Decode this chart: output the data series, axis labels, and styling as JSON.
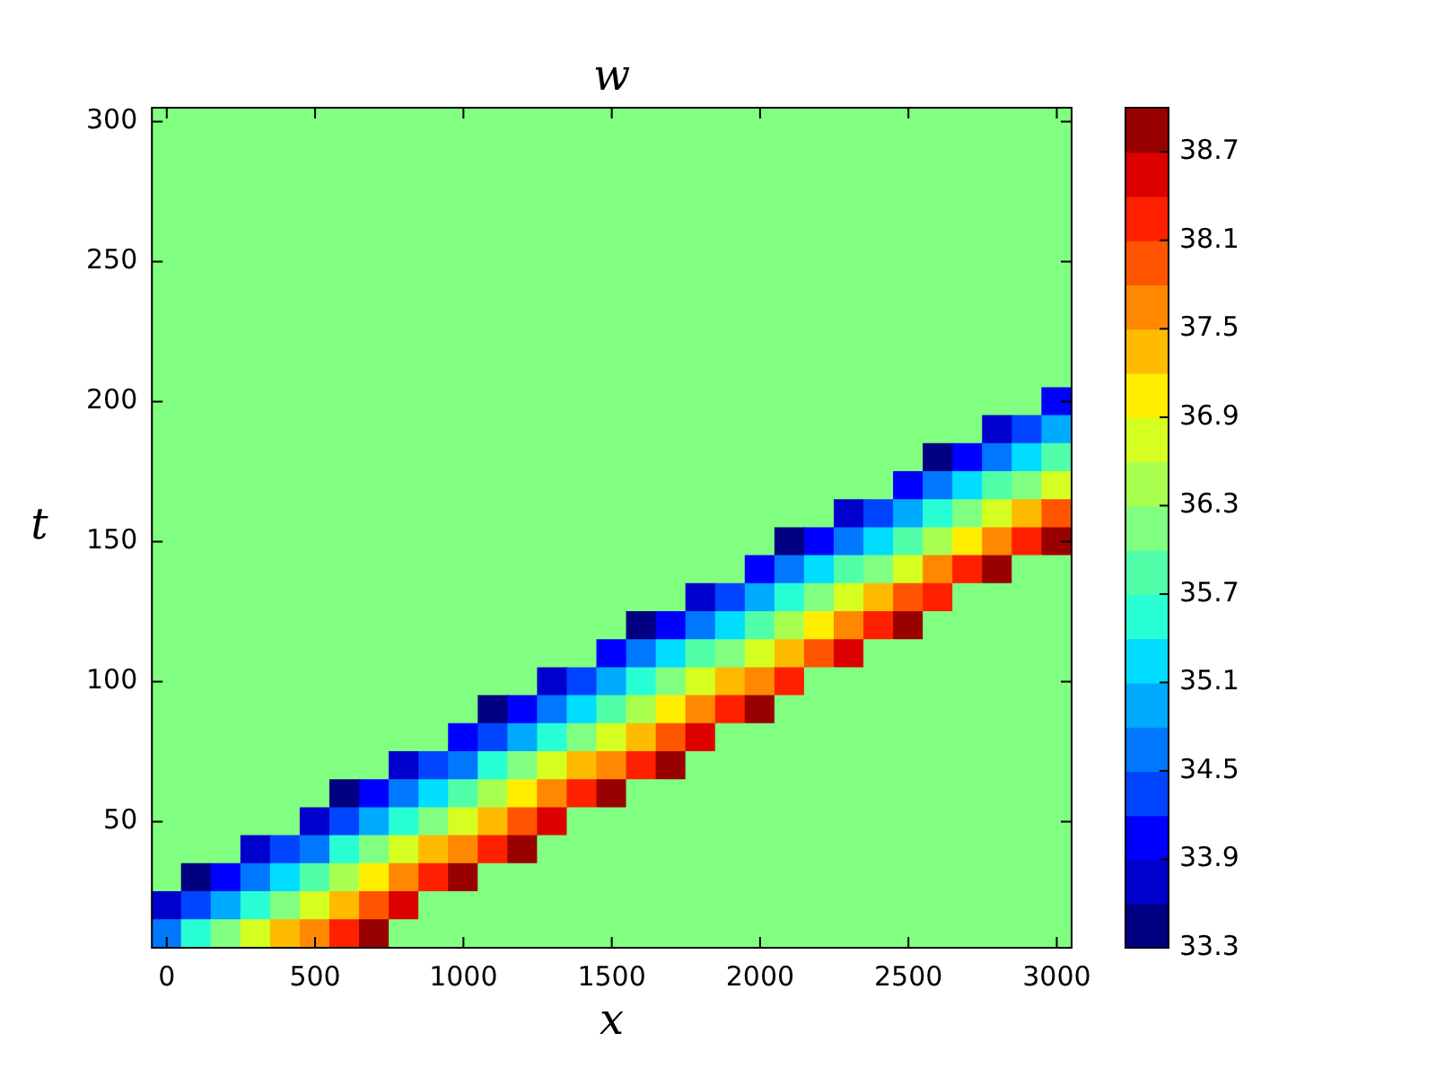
{
  "chart_data": {
    "type": "heatmap",
    "title": "w",
    "xlabel": "x",
    "ylabel": "t",
    "categories": [
      "0",
      null,
      null,
      null,
      null,
      "500",
      null,
      null,
      null,
      null,
      "1000",
      null,
      null,
      null,
      null,
      "1500",
      null,
      null,
      null,
      null,
      "2000",
      null,
      null,
      null,
      null,
      "2500",
      null,
      null,
      null,
      null,
      "3000"
    ],
    "y_categories": [
      "300",
      null,
      null,
      null,
      null,
      "250",
      null,
      null,
      null,
      null,
      "200",
      null,
      null,
      null,
      null,
      "150",
      null,
      null,
      null,
      null,
      "100",
      null,
      null,
      null,
      null,
      "50",
      null,
      null,
      null,
      null
    ],
    "clim": [
      33.3,
      39.0
    ],
    "cticks": [
      33.3,
      33.9,
      34.5,
      35.1,
      35.7,
      36.3,
      36.9,
      37.5,
      38.1,
      38.7
    ],
    "colors": [
      "#000080",
      "#0000cc",
      "#0000ff",
      "#0044ff",
      "#0077ff",
      "#00aaff",
      "#00ddff",
      "#28ffd4",
      "#50ffa8",
      "#80ff80",
      "#a8ff50",
      "#d4ff20",
      "#ffee00",
      "#ffbb00",
      "#ff8800",
      "#ff5500",
      "#ff2000",
      "#dd0000",
      "#990000"
    ],
    "cells": [
      [
        36.1,
        36.1,
        36.1,
        36.1,
        36.1,
        36.1,
        36.1,
        36.1,
        36.1,
        36.1,
        36.1,
        36.1,
        36.1,
        36.1,
        36.1,
        36.1,
        36.1,
        36.1,
        36.1,
        36.1,
        36.1,
        36.1,
        36.1,
        36.1,
        36.1,
        36.1,
        36.1,
        36.1,
        36.1,
        36.1,
        36.1
      ],
      [
        36.1,
        36.1,
        36.1,
        36.1,
        36.1,
        36.1,
        36.1,
        36.1,
        36.1,
        36.1,
        36.1,
        36.1,
        36.1,
        36.1,
        36.1,
        36.1,
        36.1,
        36.1,
        36.1,
        36.1,
        36.1,
        36.1,
        36.1,
        36.1,
        36.1,
        36.1,
        36.1,
        36.1,
        36.1,
        36.1,
        36.1
      ],
      [
        36.1,
        36.1,
        36.1,
        36.1,
        36.1,
        36.1,
        36.1,
        36.1,
        36.1,
        36.1,
        36.1,
        36.1,
        36.1,
        36.1,
        36.1,
        36.1,
        36.1,
        36.1,
        36.1,
        36.1,
        36.1,
        36.1,
        36.1,
        36.1,
        36.1,
        36.1,
        36.1,
        36.1,
        36.1,
        36.1,
        36.1
      ],
      [
        36.1,
        36.1,
        36.1,
        36.1,
        36.1,
        36.1,
        36.1,
        36.1,
        36.1,
        36.1,
        36.1,
        36.1,
        36.1,
        36.1,
        36.1,
        36.1,
        36.1,
        36.1,
        36.1,
        36.1,
        36.1,
        36.1,
        36.1,
        36.1,
        36.1,
        36.1,
        36.1,
        36.1,
        36.1,
        36.1,
        36.1
      ],
      [
        36.1,
        36.1,
        36.1,
        36.1,
        36.1,
        36.1,
        36.1,
        36.1,
        36.1,
        36.1,
        36.1,
        36.1,
        36.1,
        36.1,
        36.1,
        36.1,
        36.1,
        36.1,
        36.1,
        36.1,
        36.1,
        36.1,
        36.1,
        36.1,
        36.1,
        36.1,
        36.1,
        36.1,
        36.1,
        36.1,
        36.1
      ],
      [
        36.1,
        36.1,
        36.1,
        36.1,
        36.1,
        36.1,
        36.1,
        36.1,
        36.1,
        36.1,
        36.1,
        36.1,
        36.1,
        36.1,
        36.1,
        36.1,
        36.1,
        36.1,
        36.1,
        36.1,
        36.1,
        36.1,
        36.1,
        36.1,
        36.1,
        36.1,
        36.1,
        36.1,
        36.1,
        36.1,
        36.1
      ],
      [
        36.1,
        36.1,
        36.1,
        36.1,
        36.1,
        36.1,
        36.1,
        36.1,
        36.1,
        36.1,
        36.1,
        36.1,
        36.1,
        36.1,
        36.1,
        36.1,
        36.1,
        36.1,
        36.1,
        36.1,
        36.1,
        36.1,
        36.1,
        36.1,
        36.1,
        36.1,
        36.1,
        36.1,
        36.1,
        36.1,
        36.1
      ],
      [
        36.1,
        36.1,
        36.1,
        36.1,
        36.1,
        36.1,
        36.1,
        36.1,
        36.1,
        36.1,
        36.1,
        36.1,
        36.1,
        36.1,
        36.1,
        36.1,
        36.1,
        36.1,
        36.1,
        36.1,
        36.1,
        36.1,
        36.1,
        36.1,
        36.1,
        36.1,
        36.1,
        36.1,
        36.1,
        36.1,
        36.1
      ],
      [
        36.1,
        36.1,
        36.1,
        36.1,
        36.1,
        36.1,
        36.1,
        36.1,
        36.1,
        36.1,
        36.1,
        36.1,
        36.1,
        36.1,
        36.1,
        36.1,
        36.1,
        36.1,
        36.1,
        36.1,
        36.1,
        36.1,
        36.1,
        36.1,
        36.1,
        36.1,
        36.1,
        36.1,
        36.1,
        36.1,
        36.1
      ],
      [
        36.1,
        36.1,
        36.1,
        36.1,
        36.1,
        36.1,
        36.1,
        36.1,
        36.1,
        36.1,
        36.1,
        36.1,
        36.1,
        36.1,
        36.1,
        36.1,
        36.1,
        36.1,
        36.1,
        36.1,
        36.1,
        36.1,
        36.1,
        36.1,
        36.1,
        36.1,
        36.1,
        36.1,
        36.1,
        36.1,
        36.1
      ],
      [
        36.1,
        36.1,
        36.1,
        36.1,
        36.1,
        36.1,
        36.1,
        36.1,
        36.1,
        36.1,
        36.1,
        36.1,
        36.1,
        36.1,
        36.1,
        36.1,
        36.1,
        36.1,
        36.1,
        36.1,
        36.1,
        36.1,
        36.1,
        36.1,
        36.1,
        36.1,
        36.1,
        36.1,
        36.1,
        36.1,
        34.0
      ],
      [
        36.1,
        36.1,
        36.1,
        36.1,
        36.1,
        36.1,
        36.1,
        36.1,
        36.1,
        36.1,
        36.1,
        36.1,
        36.1,
        36.1,
        36.1,
        36.1,
        36.1,
        36.1,
        36.1,
        36.1,
        36.1,
        36.1,
        36.1,
        36.1,
        36.1,
        36.1,
        36.1,
        36.1,
        33.8,
        34.3,
        34.9
      ],
      [
        36.1,
        36.1,
        36.1,
        36.1,
        36.1,
        36.1,
        36.1,
        36.1,
        36.1,
        36.1,
        36.1,
        36.1,
        36.1,
        36.1,
        36.1,
        36.1,
        36.1,
        36.1,
        36.1,
        36.1,
        36.1,
        36.1,
        36.1,
        36.1,
        36.1,
        36.1,
        33.5,
        34.1,
        34.7,
        35.3,
        35.9
      ],
      [
        36.1,
        36.1,
        36.1,
        36.1,
        36.1,
        36.1,
        36.1,
        36.1,
        36.1,
        36.1,
        36.1,
        36.1,
        36.1,
        36.1,
        36.1,
        36.1,
        36.1,
        36.1,
        36.1,
        36.1,
        36.1,
        36.1,
        36.1,
        36.1,
        36.1,
        33.9,
        34.5,
        35.1,
        35.7,
        36.3,
        36.9
      ],
      [
        36.1,
        36.1,
        36.1,
        36.1,
        36.1,
        36.1,
        36.1,
        36.1,
        36.1,
        36.1,
        36.1,
        36.1,
        36.1,
        36.1,
        36.1,
        36.1,
        36.1,
        36.1,
        36.1,
        36.1,
        36.1,
        36.1,
        36.1,
        33.7,
        34.3,
        34.9,
        35.5,
        36.1,
        36.7,
        37.3,
        37.9
      ],
      [
        36.1,
        36.1,
        36.1,
        36.1,
        36.1,
        36.1,
        36.1,
        36.1,
        36.1,
        36.1,
        36.1,
        36.1,
        36.1,
        36.1,
        36.1,
        36.1,
        36.1,
        36.1,
        36.1,
        36.1,
        36.1,
        33.5,
        34.1,
        34.7,
        35.3,
        35.9,
        36.5,
        37.1,
        37.7,
        38.3,
        38.9
      ],
      [
        36.1,
        36.1,
        36.1,
        36.1,
        36.1,
        36.1,
        36.1,
        36.1,
        36.1,
        36.1,
        36.1,
        36.1,
        36.1,
        36.1,
        36.1,
        36.1,
        36.1,
        36.1,
        36.1,
        36.1,
        33.9,
        34.5,
        35.1,
        35.7,
        36.3,
        36.9,
        37.5,
        38.1,
        38.7,
        36.1,
        36.1
      ],
      [
        36.1,
        36.1,
        36.1,
        36.1,
        36.1,
        36.1,
        36.1,
        36.1,
        36.1,
        36.1,
        36.1,
        36.1,
        36.1,
        36.1,
        36.1,
        36.1,
        36.1,
        36.1,
        33.7,
        34.3,
        34.9,
        35.5,
        36.1,
        36.7,
        37.3,
        37.9,
        38.4,
        36.1,
        36.1,
        36.1,
        36.1
      ],
      [
        36.1,
        36.1,
        36.1,
        36.1,
        36.1,
        36.1,
        36.1,
        36.1,
        36.1,
        36.1,
        36.1,
        36.1,
        36.1,
        36.1,
        36.1,
        36.1,
        33.5,
        34.1,
        34.7,
        35.3,
        35.9,
        36.5,
        37.1,
        37.6,
        38.2,
        38.8,
        36.1,
        36.1,
        36.1,
        36.1,
        36.1
      ],
      [
        36.1,
        36.1,
        36.1,
        36.1,
        36.1,
        36.1,
        36.1,
        36.1,
        36.1,
        36.1,
        36.1,
        36.1,
        36.1,
        36.1,
        36.1,
        33.9,
        34.5,
        35.1,
        35.7,
        36.3,
        36.8,
        37.4,
        38.0,
        38.6,
        36.1,
        36.1,
        36.1,
        36.1,
        36.1,
        36.1,
        36.1
      ],
      [
        36.1,
        36.1,
        36.1,
        36.1,
        36.1,
        36.1,
        36.1,
        36.1,
        36.1,
        36.1,
        36.1,
        36.1,
        36.1,
        33.7,
        34.3,
        34.9,
        35.5,
        36.0,
        36.6,
        37.2,
        37.8,
        38.4,
        36.1,
        36.1,
        36.1,
        36.1,
        36.1,
        36.1,
        36.1,
        36.1,
        36.1
      ],
      [
        36.1,
        36.1,
        36.1,
        36.1,
        36.1,
        36.1,
        36.1,
        36.1,
        36.1,
        36.1,
        36.1,
        33.5,
        34.1,
        34.7,
        35.2,
        35.8,
        36.4,
        37.0,
        37.6,
        38.2,
        38.8,
        36.1,
        36.1,
        36.1,
        36.1,
        36.1,
        36.1,
        36.1,
        36.1,
        36.1,
        36.1
      ],
      [
        36.1,
        36.1,
        36.1,
        36.1,
        36.1,
        36.1,
        36.1,
        36.1,
        36.1,
        36.1,
        33.9,
        34.4,
        35.0,
        35.6,
        36.2,
        36.8,
        37.4,
        38.0,
        38.6,
        36.1,
        36.1,
        36.1,
        36.1,
        36.1,
        36.1,
        36.1,
        36.1,
        36.1,
        36.1,
        36.1,
        36.1
      ],
      [
        36.1,
        36.1,
        36.1,
        36.1,
        36.1,
        36.1,
        36.1,
        36.1,
        33.7,
        34.2,
        34.8,
        35.4,
        36.0,
        36.6,
        37.2,
        37.8,
        38.4,
        38.9,
        36.1,
        36.1,
        36.1,
        36.1,
        36.1,
        36.1,
        36.1,
        36.1,
        36.1,
        36.1,
        36.1,
        36.1,
        36.1
      ],
      [
        36.1,
        36.1,
        36.1,
        36.1,
        36.1,
        36.1,
        33.4,
        34.0,
        34.6,
        35.2,
        35.8,
        36.4,
        37.0,
        37.6,
        38.2,
        38.8,
        36.1,
        36.1,
        36.1,
        36.1,
        36.1,
        36.1,
        36.1,
        36.1,
        36.1,
        36.1,
        36.1,
        36.1,
        36.1,
        36.1,
        36.1
      ],
      [
        36.1,
        36.1,
        36.1,
        36.1,
        36.1,
        33.8,
        34.4,
        35.0,
        35.6,
        36.2,
        36.8,
        37.4,
        38.0,
        38.6,
        36.1,
        36.1,
        36.1,
        36.1,
        36.1,
        36.1,
        36.1,
        36.1,
        36.1,
        36.1,
        36.1,
        36.1,
        36.1,
        36.1,
        36.1,
        36.1,
        36.1
      ],
      [
        36.1,
        36.1,
        36.1,
        33.6,
        34.2,
        34.8,
        35.4,
        36.0,
        36.6,
        37.2,
        37.8,
        38.4,
        38.9,
        36.1,
        36.1,
        36.1,
        36.1,
        36.1,
        36.1,
        36.1,
        36.1,
        36.1,
        36.1,
        36.1,
        36.1,
        36.1,
        36.1,
        36.1,
        36.1,
        36.1,
        36.1
      ],
      [
        36.1,
        33.4,
        34.0,
        34.6,
        35.2,
        35.8,
        36.4,
        37.0,
        37.6,
        38.2,
        38.8,
        36.1,
        36.1,
        36.1,
        36.1,
        36.1,
        36.1,
        36.1,
        36.1,
        36.1,
        36.1,
        36.1,
        36.1,
        36.1,
        36.1,
        36.1,
        36.1,
        36.1,
        36.1,
        36.1,
        36.1
      ],
      [
        33.8,
        34.4,
        35.0,
        35.6,
        36.2,
        36.8,
        37.4,
        38.0,
        38.6,
        36.1,
        36.1,
        36.1,
        36.1,
        36.1,
        36.1,
        36.1,
        36.1,
        36.1,
        36.1,
        36.1,
        36.1,
        36.1,
        36.1,
        36.1,
        36.1,
        36.1,
        36.1,
        36.1,
        36.1,
        36.1,
        36.1
      ],
      [
        34.8,
        35.4,
        36.0,
        36.6,
        37.2,
        37.8,
        38.3,
        38.9,
        36.1,
        36.1,
        36.1,
        36.1,
        36.1,
        36.1,
        36.1,
        36.1,
        36.1,
        36.1,
        36.1,
        36.1,
        36.1,
        36.1,
        36.1,
        36.1,
        36.1,
        36.1,
        36.1,
        36.1,
        36.1,
        36.1,
        36.1
      ]
    ]
  }
}
